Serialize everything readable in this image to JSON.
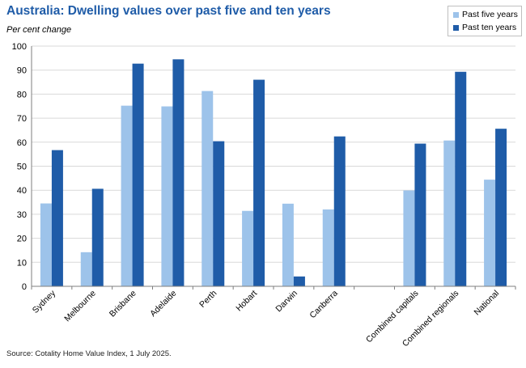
{
  "colors": {
    "title": "#1f5ca8",
    "five_year": "#9dc3ea",
    "ten_year": "#1f5ca8",
    "grid": "#d9d9d9",
    "axis": "#7f7f7f",
    "text": "#000000"
  },
  "source": "Source: Cotality Home Value Index, 1 July 2025.",
  "chart_data": {
    "type": "bar",
    "title": "Australia: Dwelling values over past five and ten years",
    "ylabel": "Per cent change",
    "xlabel": "",
    "ylim": [
      0,
      100
    ],
    "yticks": [
      0,
      10,
      20,
      30,
      40,
      50,
      60,
      70,
      80,
      90,
      100
    ],
    "grid": true,
    "legend_position": "top-right",
    "categories": [
      "Sydney",
      "Melbourne",
      "Brisbane",
      "Adelaide",
      "Perth",
      "Hobart",
      "Darwin",
      "Canberra",
      "",
      "Combined capitals",
      "Combined regionals",
      "National"
    ],
    "series": [
      {
        "name": "Past five years",
        "values": [
          34.5,
          14.2,
          75.2,
          74.9,
          81.3,
          31.4,
          34.4,
          32.0,
          null,
          39.9,
          60.7,
          44.4
        ]
      },
      {
        "name": "Past ten years",
        "values": [
          56.7,
          40.6,
          92.7,
          94.5,
          60.4,
          86.0,
          4.1,
          62.4,
          null,
          59.4,
          89.3,
          65.6
        ]
      }
    ]
  }
}
